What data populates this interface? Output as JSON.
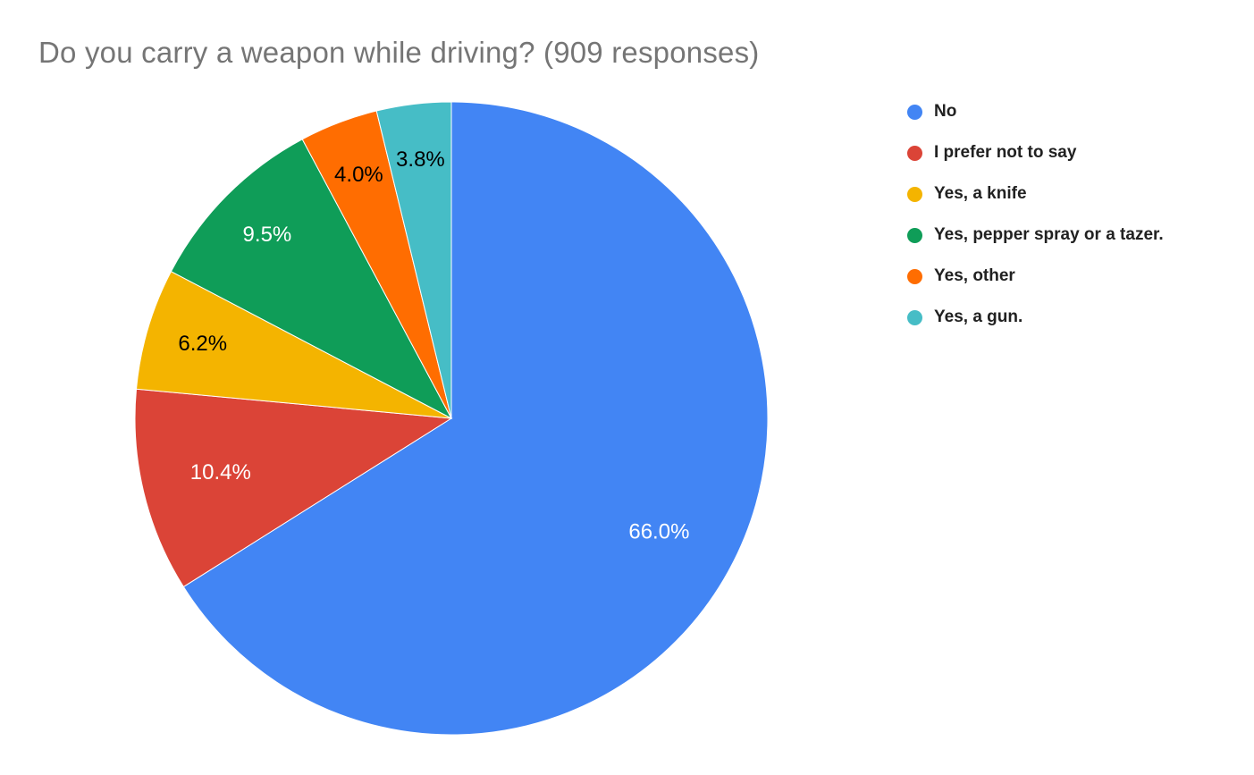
{
  "title": "Do you carry a weapon while driving? (909 responses)",
  "chart_data": {
    "type": "pie",
    "title": "Do you carry a weapon while driving?",
    "responses_label": "909 responses",
    "categories": [
      "No",
      "I prefer not to say",
      "Yes, a knife",
      "Yes, pepper spray or a tazer.",
      "Yes, other",
      "Yes, a gun."
    ],
    "values": [
      66.0,
      10.4,
      6.2,
      9.5,
      4.0,
      3.8
    ],
    "slice_labels": [
      "66.0%",
      "10.4%",
      "6.2%",
      "9.5%",
      "4.0%",
      "3.8%"
    ],
    "colors": [
      "#4285F4",
      "#DB4437",
      "#F4B400",
      "#0F9D58",
      "#FF6D01",
      "#46BDC6"
    ],
    "slice_label_colors": [
      "#ffffff",
      "#ffffff",
      "#000000",
      "#ffffff",
      "#000000",
      "#000000"
    ],
    "start_angle_deg": 0,
    "direction": "clockwise",
    "legend_position": "right",
    "background_color": "#ffffff",
    "title_color": "#757575"
  }
}
